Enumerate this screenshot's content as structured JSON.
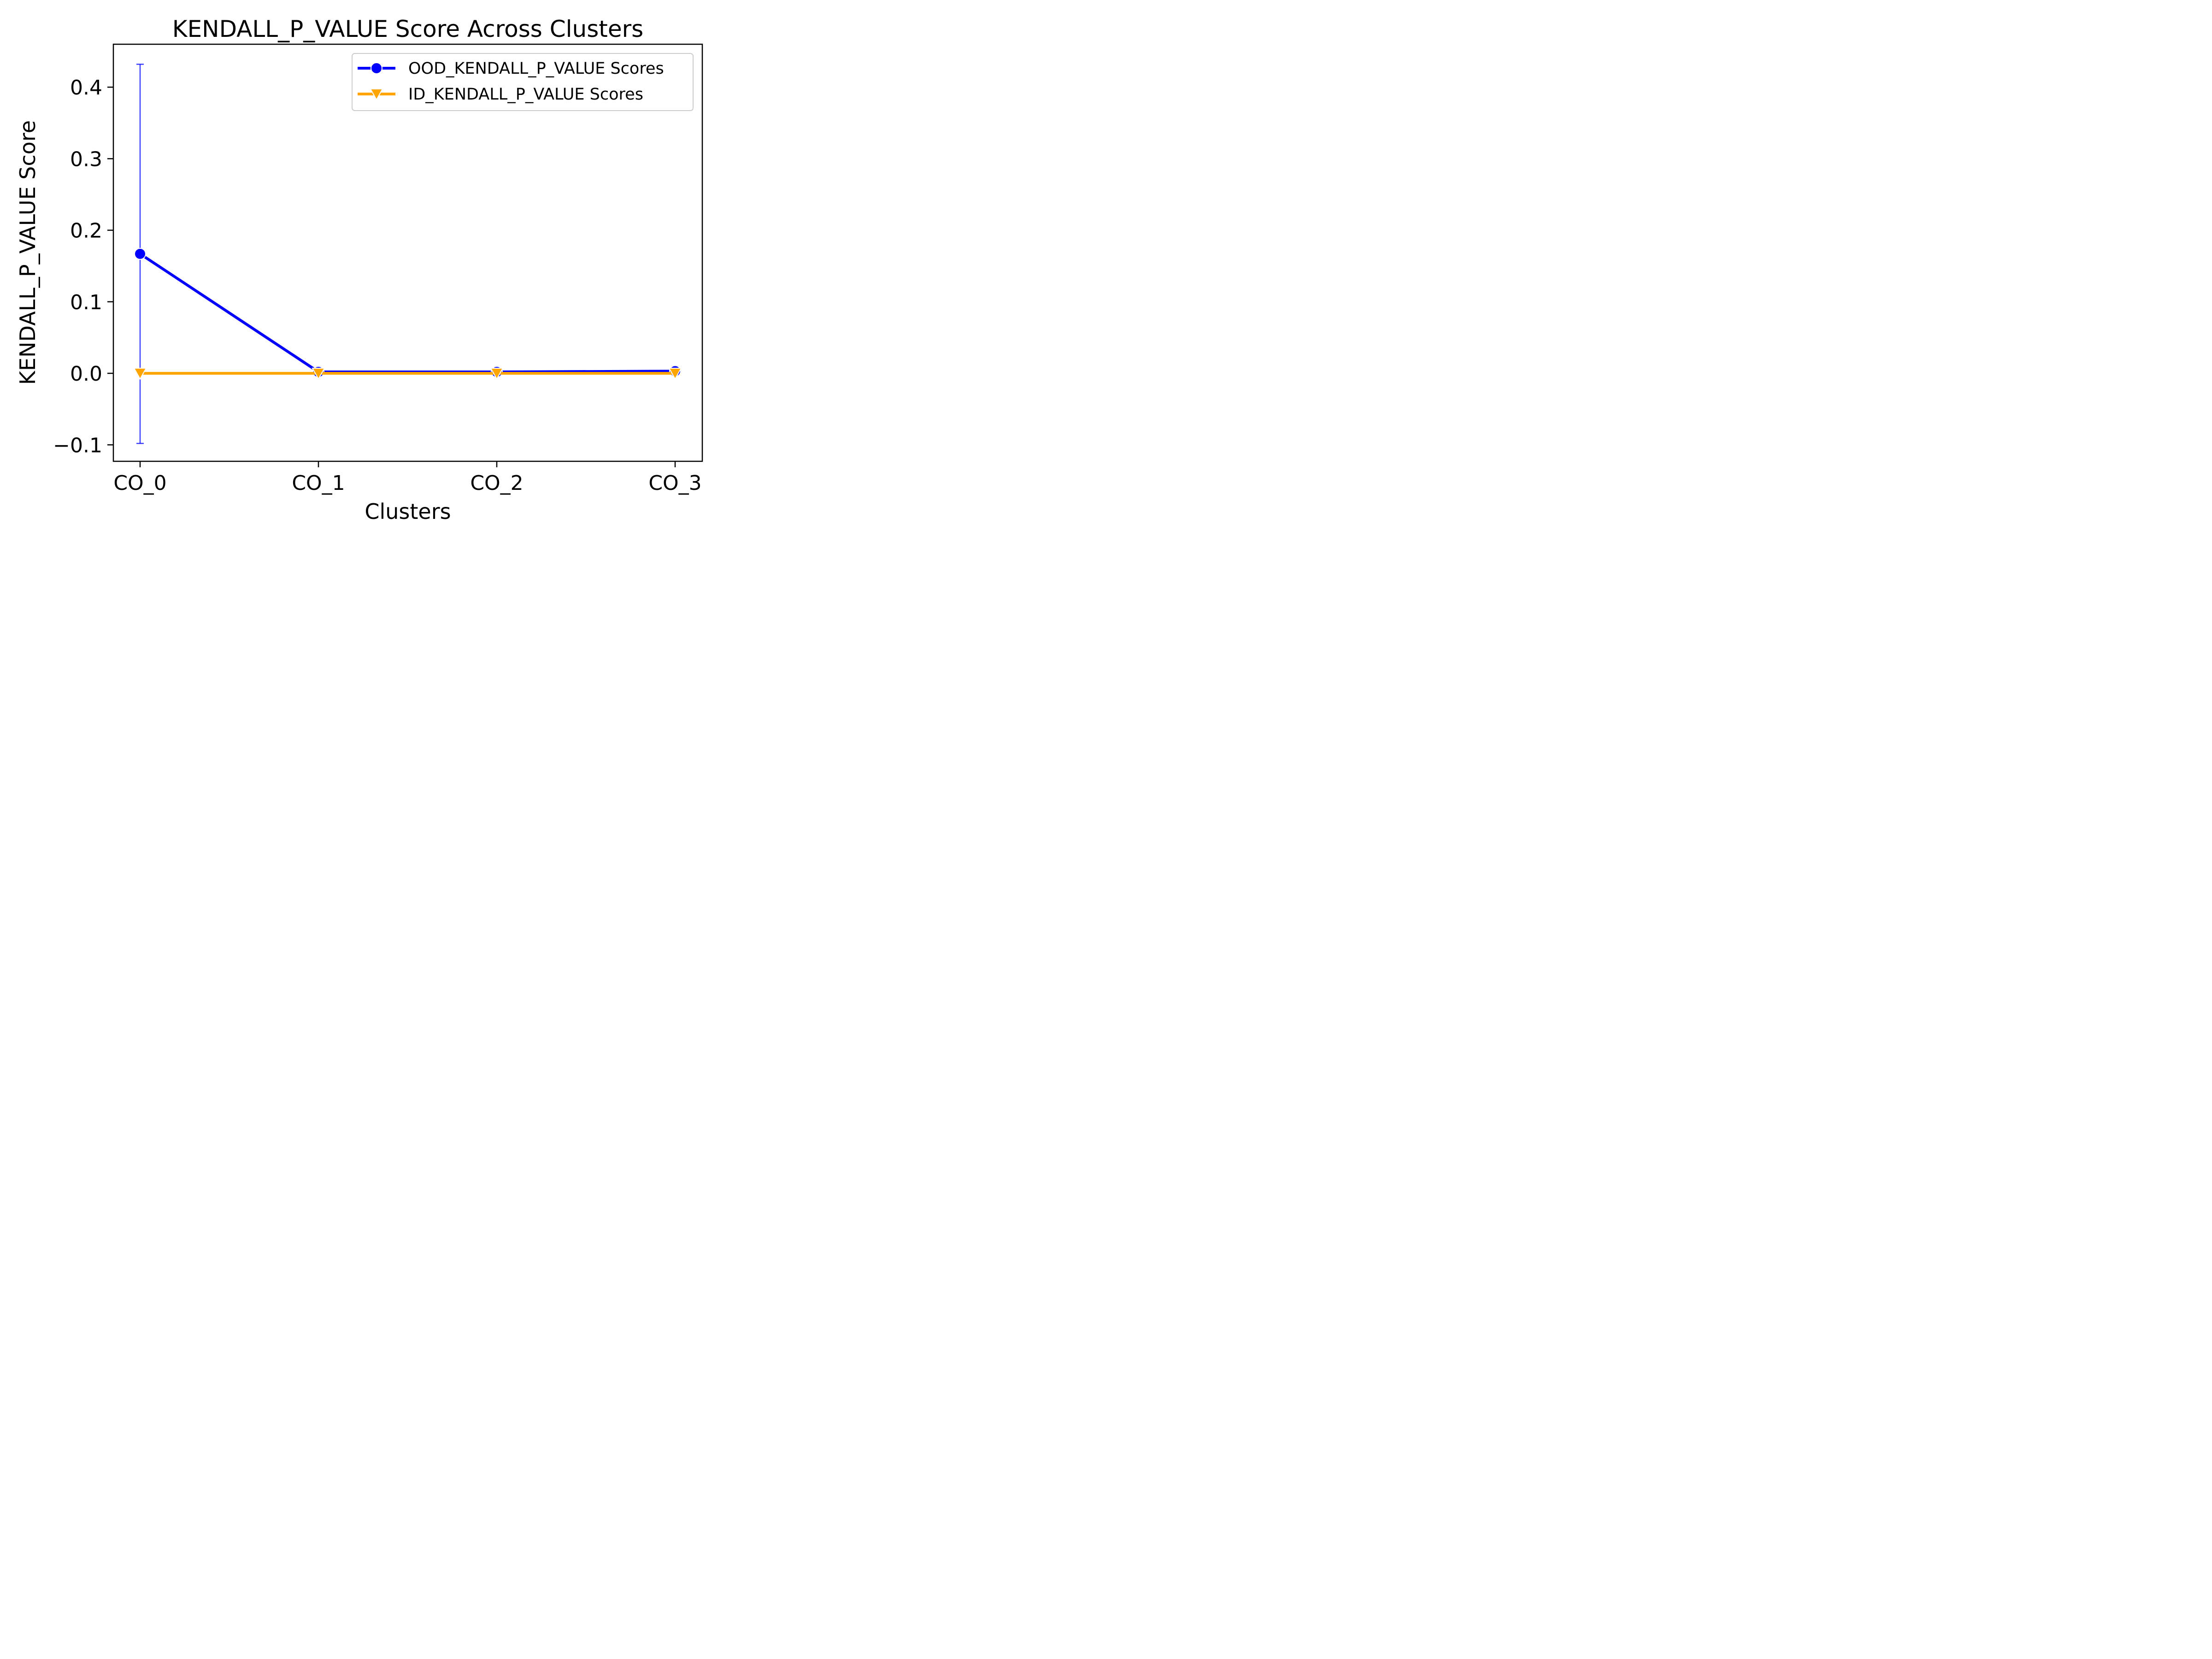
{
  "chart_data": {
    "type": "line",
    "title": "KENDALL_P_VALUE Score Across Clusters",
    "xlabel": "Clusters",
    "ylabel": "KENDALL_P_VALUE Score",
    "categories": [
      "CO_0",
      "CO_1",
      "CO_2",
      "CO_3"
    ],
    "ylim": [
      -0.123,
      0.46
    ],
    "yticks": [
      -0.1,
      0.0,
      0.1,
      0.2,
      0.3,
      0.4
    ],
    "ytick_labels": [
      "−0.1",
      "0.0",
      "0.1",
      "0.2",
      "0.3",
      "0.4"
    ],
    "grid": false,
    "legend_position": "top-right",
    "series": [
      {
        "name": "OOD_KENDALL_P_VALUE Scores",
        "color": "#0000ff",
        "marker": "circle",
        "values": [
          0.167,
          0.002,
          0.002,
          0.003
        ],
        "error": [
          0.265,
          0,
          0,
          0
        ]
      },
      {
        "name": "ID_KENDALL_P_VALUE Scores",
        "color": "#ffa500",
        "marker": "triangle-down",
        "values": [
          0.0,
          0.0,
          0.0,
          0.0
        ]
      }
    ]
  }
}
